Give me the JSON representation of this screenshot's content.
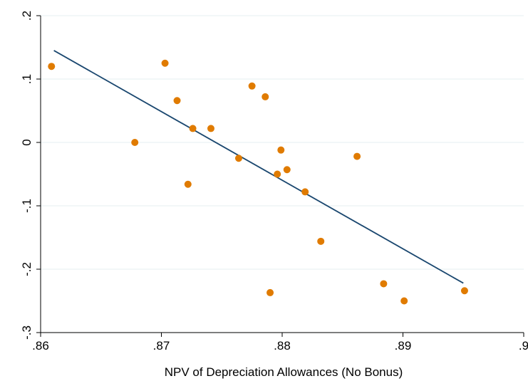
{
  "chart_data": {
    "type": "scatter",
    "title": "",
    "xlabel": "NPV of Depreciation Allowances (No Bonus)",
    "ylabel": "",
    "xlim": [
      0.86,
      0.9
    ],
    "ylim": [
      -0.3,
      0.2
    ],
    "x_ticks": [
      {
        "value": 0.86,
        "label": ".86"
      },
      {
        "value": 0.87,
        "label": ".87"
      },
      {
        "value": 0.88,
        "label": ".88"
      },
      {
        "value": 0.89,
        "label": ".89"
      },
      {
        "value": 0.9,
        "label": ".9"
      }
    ],
    "y_ticks": [
      {
        "value": -0.3,
        "label": "-.3"
      },
      {
        "value": -0.2,
        "label": "-.2"
      },
      {
        "value": -0.1,
        "label": "-.1"
      },
      {
        "value": 0,
        "label": "0"
      },
      {
        "value": 0.1,
        "label": ".1"
      },
      {
        "value": 0.2,
        "label": ".2"
      }
    ],
    "grid": "horizontal",
    "legend": "none",
    "colors": {
      "points": "#E07B00",
      "fit_line": "#1A476F",
      "grid": "#EAF2F3",
      "axis": "#000000"
    },
    "points": [
      {
        "x": 0.8609,
        "y": 0.12
      },
      {
        "x": 0.8678,
        "y": 0.0
      },
      {
        "x": 0.8703,
        "y": 0.125
      },
      {
        "x": 0.8713,
        "y": 0.066
      },
      {
        "x": 0.8722,
        "y": -0.066
      },
      {
        "x": 0.8726,
        "y": 0.022
      },
      {
        "x": 0.8741,
        "y": 0.022
      },
      {
        "x": 0.8764,
        "y": -0.025
      },
      {
        "x": 0.8775,
        "y": 0.089
      },
      {
        "x": 0.8786,
        "y": 0.072
      },
      {
        "x": 0.879,
        "y": -0.237
      },
      {
        "x": 0.8796,
        "y": -0.05
      },
      {
        "x": 0.8799,
        "y": -0.012
      },
      {
        "x": 0.8804,
        "y": -0.043
      },
      {
        "x": 0.8819,
        "y": -0.078
      },
      {
        "x": 0.8832,
        "y": -0.156
      },
      {
        "x": 0.8862,
        "y": -0.022
      },
      {
        "x": 0.8884,
        "y": -0.223
      },
      {
        "x": 0.8901,
        "y": -0.25
      },
      {
        "x": 0.8951,
        "y": -0.234
      }
    ],
    "fit_line": {
      "x_start": 0.8611,
      "y_start": 0.145,
      "x_end": 0.895,
      "y_end": -0.222
    }
  }
}
